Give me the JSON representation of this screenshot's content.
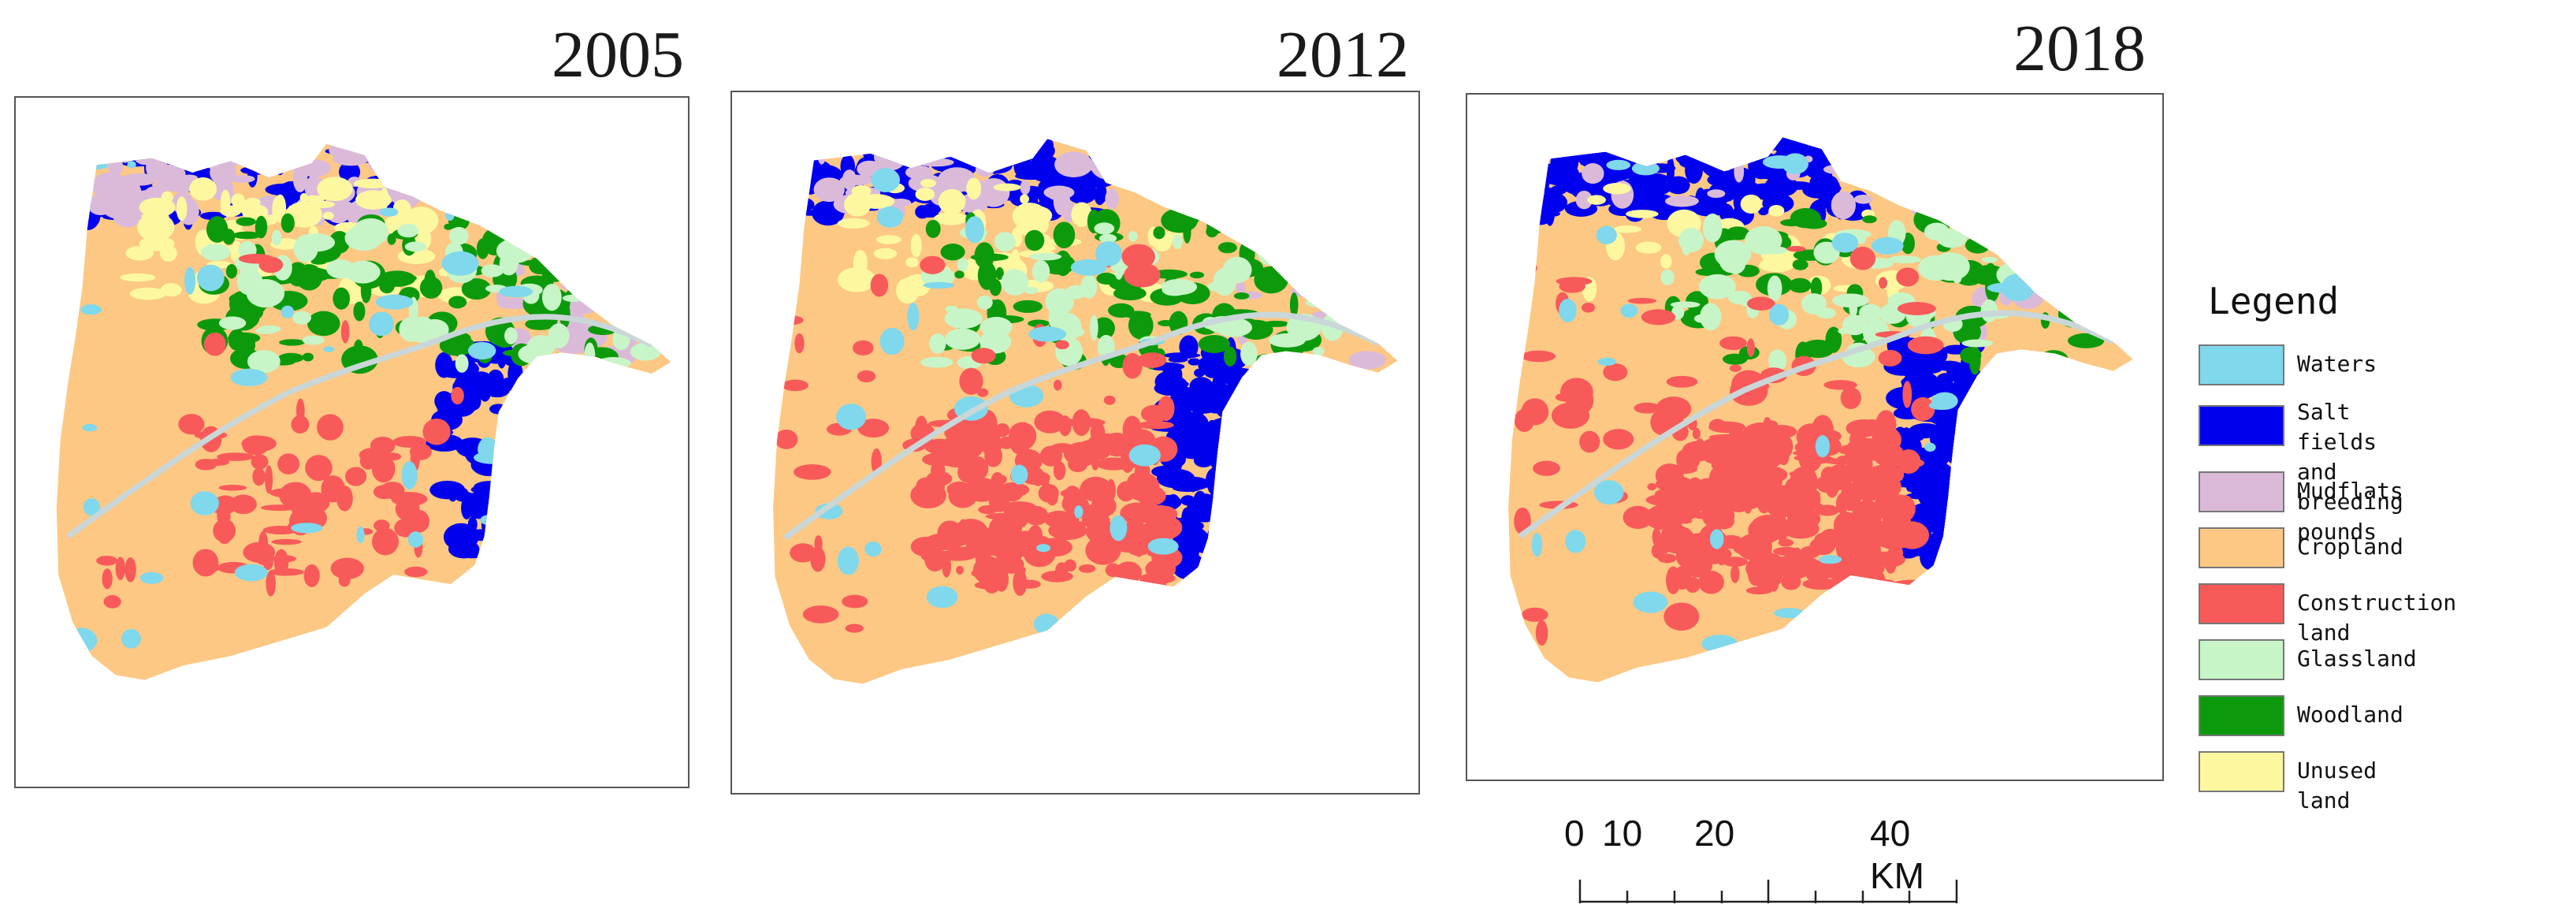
{
  "maps": [
    {
      "year": "2005"
    },
    {
      "year": "2012"
    },
    {
      "year": "2018"
    }
  ],
  "legend": {
    "title": "Legend",
    "items": [
      {
        "label": "Waters",
        "color": "#7fd8ec"
      },
      {
        "label": "Salt fields and\nbreeding pounds",
        "color": "#0000ee"
      },
      {
        "label": "Mudflats",
        "color": "#dbbad9"
      },
      {
        "label": "Cropland",
        "color": "#fcc884"
      },
      {
        "label": "Construction land",
        "color": "#f85a5a"
      },
      {
        "label": "Glassland",
        "color": "#c8f5c8"
      },
      {
        "label": "Woodland",
        "color": "#0c9a0c"
      },
      {
        "label": "Unused land",
        "color": "#fdf8a0"
      }
    ]
  },
  "scale_bar": {
    "labels": [
      "0",
      "10",
      "20",
      "40 KM"
    ]
  }
}
